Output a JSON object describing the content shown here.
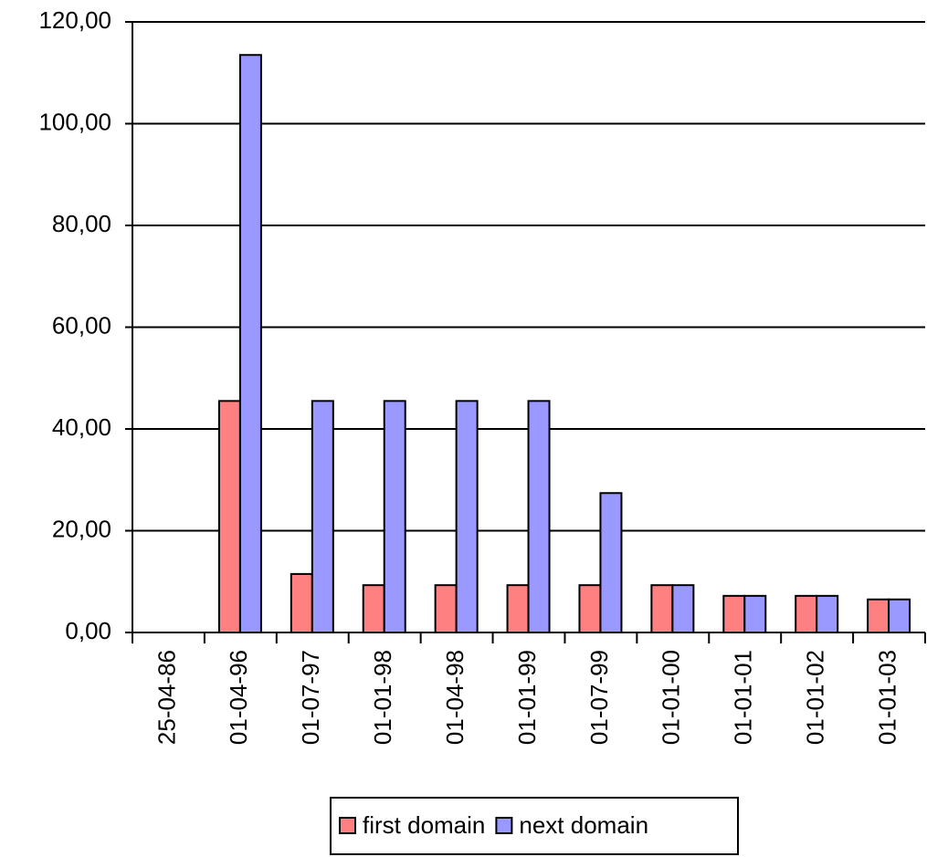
{
  "chart_data": {
    "type": "bar",
    "categories": [
      "25-04-86",
      "01-04-96",
      "01-07-97",
      "01-01-98",
      "01-04-98",
      "01-01-99",
      "01-07-99",
      "01-01-00",
      "01-01-01",
      "01-01-02",
      "01-01-03"
    ],
    "series": [
      {
        "name": "first domain",
        "color": "#ff8080",
        "values": [
          0,
          45.5,
          11.5,
          9.3,
          9.3,
          9.3,
          9.3,
          9.3,
          7.2,
          7.2,
          6.5
        ]
      },
      {
        "name": "next domain",
        "color": "#9999ff",
        "values": [
          0,
          113.5,
          45.5,
          45.5,
          45.5,
          45.5,
          27.4,
          9.3,
          7.2,
          7.2,
          6.5
        ]
      }
    ],
    "ylim": [
      0,
      120
    ],
    "yticks": [
      {
        "value": 0,
        "label": "0,00"
      },
      {
        "value": 20,
        "label": "20,00"
      },
      {
        "value": 40,
        "label": "40,00"
      },
      {
        "value": 60,
        "label": "60,00"
      },
      {
        "value": 80,
        "label": "80,00"
      },
      {
        "value": 100,
        "label": "100,00"
      },
      {
        "value": 120,
        "label": "120,00"
      }
    ],
    "grid": true,
    "legend": "bottom"
  }
}
